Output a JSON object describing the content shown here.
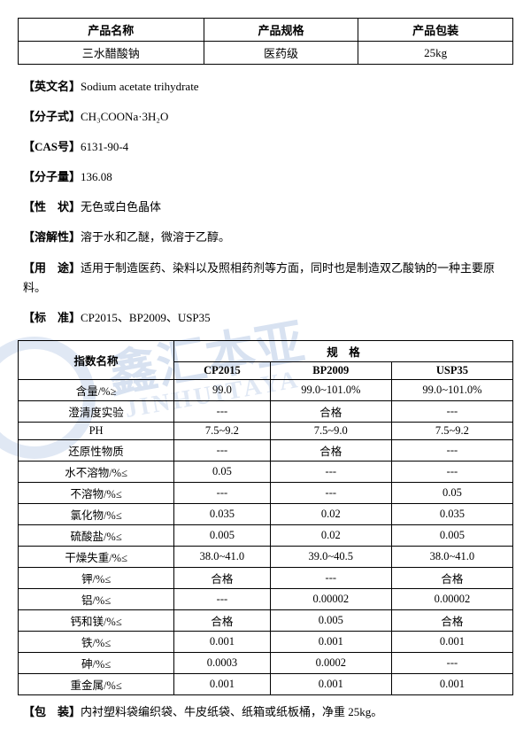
{
  "head_table": {
    "headers": [
      "产品名称",
      "产品规格",
      "产品包装"
    ],
    "row": [
      "三水醋酸钠",
      "医药级",
      "25kg"
    ]
  },
  "info": [
    {
      "label": "【英文名】",
      "value": "Sodium acetate trihydrate"
    },
    {
      "label": "【分子式】",
      "value": "CH₃COONa·3H₂O"
    },
    {
      "label": "【CAS号】",
      "value": "6131-90-4"
    },
    {
      "label": "【分子量】",
      "value": "136.08"
    },
    {
      "label": "【性　状】",
      "value": "无色或白色晶体"
    },
    {
      "label": "【溶解性】",
      "value": "溶于水和乙醚，微溶于乙醇。"
    },
    {
      "label": "【用　途】",
      "value": "适用于制造医药、染料以及照相药剂等方面，同时也是制造双乙酸钠的一种主要原料。"
    },
    {
      "label": "【标　准】",
      "value": "CP2015、BP2009、USP35"
    }
  ],
  "spec": {
    "corner": "指数名称",
    "super_header": "规　格",
    "cols": [
      "CP2015",
      "BP2009",
      "USP35"
    ],
    "rows": [
      {
        "name": "含量/%≥",
        "v": [
          "99.0",
          "99.0~101.0%",
          "99.0~101.0%"
        ]
      },
      {
        "name": "澄清度实验",
        "v": [
          "---",
          "合格",
          "---"
        ]
      },
      {
        "name": "PH",
        "v": [
          "7.5~9.2",
          "7.5~9.0",
          "7.5~9.2"
        ]
      },
      {
        "name": "还原性物质",
        "v": [
          "---",
          "合格",
          "---"
        ]
      },
      {
        "name": "水不溶物/%≤",
        "v": [
          "0.05",
          "---",
          "---"
        ]
      },
      {
        "name": "不溶物/%≤",
        "v": [
          "---",
          "---",
          "0.05"
        ]
      },
      {
        "name": "氯化物/%≤",
        "v": [
          "0.035",
          "0.02",
          "0.035"
        ]
      },
      {
        "name": "硫酸盐/%≤",
        "v": [
          "0.005",
          "0.02",
          "0.005"
        ]
      },
      {
        "name": "干燥失重/%≤",
        "v": [
          "38.0~41.0",
          "39.0~40.5",
          "38.0~41.0"
        ]
      },
      {
        "name": "钾/%≤",
        "v": [
          "合格",
          "---",
          "合格"
        ]
      },
      {
        "name": "铝/%≤",
        "v": [
          "---",
          "0.00002",
          "0.00002"
        ]
      },
      {
        "name": "钙和镁/%≤",
        "v": [
          "合格",
          "0.005",
          "合格"
        ]
      },
      {
        "name": "铁/%≤",
        "v": [
          "0.001",
          "0.001",
          "0.001"
        ]
      },
      {
        "name": "砷/%≤",
        "v": [
          "0.0003",
          "0.0002",
          "---"
        ]
      },
      {
        "name": "重金属/%≤",
        "v": [
          "0.001",
          "0.001",
          "0.001"
        ]
      }
    ]
  },
  "footer": {
    "label": "【包　装】",
    "value": "内衬塑料袋编织袋、牛皮纸袋、纸箱或纸板桶，净重 25kg。"
  },
  "watermark": {
    "main": "鑫汇本亚",
    "sub": "JINHUITAYA"
  },
  "colors": {
    "border": "#000000",
    "text": "#000000",
    "watermark": "rgba(100,140,200,0.25)"
  }
}
